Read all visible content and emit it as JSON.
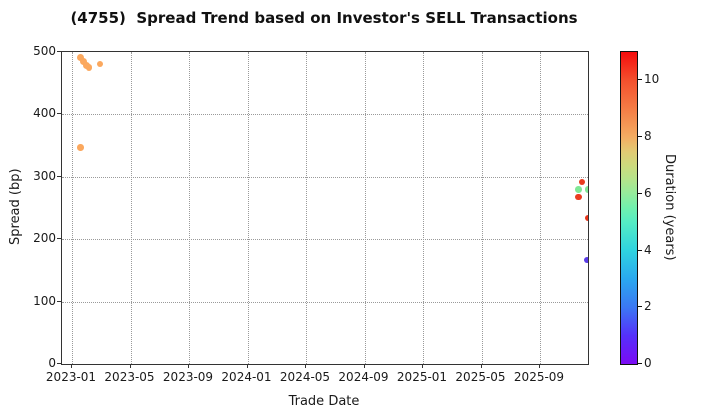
{
  "chart_data": {
    "type": "scatter",
    "title": "(4755)  Spread Trend based on Investor's SELL Transactions",
    "xlabel": "Trade Date",
    "ylabel": "Spread (bp)",
    "x_tick_labels": [
      "2023-01",
      "2023-05",
      "2023-09",
      "2024-01",
      "2024-05",
      "2024-09",
      "2025-01",
      "2025-05",
      "2025-09"
    ],
    "y_ticks": [
      0,
      100,
      200,
      300,
      400,
      500
    ],
    "ylim": [
      0,
      500
    ],
    "grid": "dotted",
    "background_color": "#ffffff",
    "colorbar": {
      "label": "Duration (years)",
      "min": 0,
      "max": 11,
      "ticks": [
        0,
        2,
        4,
        6,
        8,
        10
      ],
      "gradient": [
        {
          "v": 0,
          "c": "#7b0bf3"
        },
        {
          "v": 1,
          "c": "#5530fa"
        },
        {
          "v": 2,
          "c": "#3b78f3"
        },
        {
          "v": 3,
          "c": "#2aa8ef"
        },
        {
          "v": 4,
          "c": "#2fd3e0"
        },
        {
          "v": 5,
          "c": "#55ecc4"
        },
        {
          "v": 5.5,
          "c": "#70f0ae"
        },
        {
          "v": 6,
          "c": "#94ec9c"
        },
        {
          "v": 6.5,
          "c": "#b4e48b"
        },
        {
          "v": 7,
          "c": "#cdda7d"
        },
        {
          "v": 7.5,
          "c": "#e2ca73"
        },
        {
          "v": 8,
          "c": "#f3ac62"
        },
        {
          "v": 9,
          "c": "#f57c45"
        },
        {
          "v": 10,
          "c": "#f3502d"
        },
        {
          "v": 11,
          "c": "#f50d0d"
        }
      ]
    },
    "points": [
      {
        "date": "2023-01-19",
        "spread": 491,
        "duration": 8,
        "color": "#fba85e",
        "size": 7.5
      },
      {
        "date": "2023-01-25",
        "spread": 485,
        "duration": 8,
        "color": "#fba85e",
        "size": 7.5
      },
      {
        "date": "2023-02-01",
        "spread": 479,
        "duration": 8,
        "color": "#fba85e",
        "size": 7
      },
      {
        "date": "2023-02-06",
        "spread": 475,
        "duration": 8,
        "color": "#fba85e",
        "size": 6.5
      },
      {
        "date": "2023-02-28",
        "spread": 481,
        "duration": 8,
        "color": "#fba85e",
        "size": 6
      },
      {
        "date": "2023-01-19",
        "spread": 347,
        "duration": 8,
        "color": "#fba85e",
        "size": 6.5
      },
      {
        "date": "2025-11-28",
        "spread": 292,
        "duration": 10.5,
        "color": "#ea3c20",
        "size": 6.5
      },
      {
        "date": "2025-11-20",
        "spread": 280,
        "duration": 6.5,
        "color": "#80e896",
        "size": 6.5
      },
      {
        "date": "2025-12-10",
        "spread": 280,
        "duration": 6.5,
        "color": "#80e896",
        "size": 6.5
      },
      {
        "date": "2025-11-20",
        "spread": 268,
        "duration": 10.5,
        "color": "#ea3c20",
        "size": 6.5
      },
      {
        "date": "2025-12-10",
        "spread": 234,
        "duration": 10.5,
        "color": "#e73419",
        "size": 6.5
      },
      {
        "date": "2025-12-08",
        "spread": 167,
        "duration": 1.5,
        "color": "#5a3ce6",
        "size": 6
      }
    ]
  }
}
